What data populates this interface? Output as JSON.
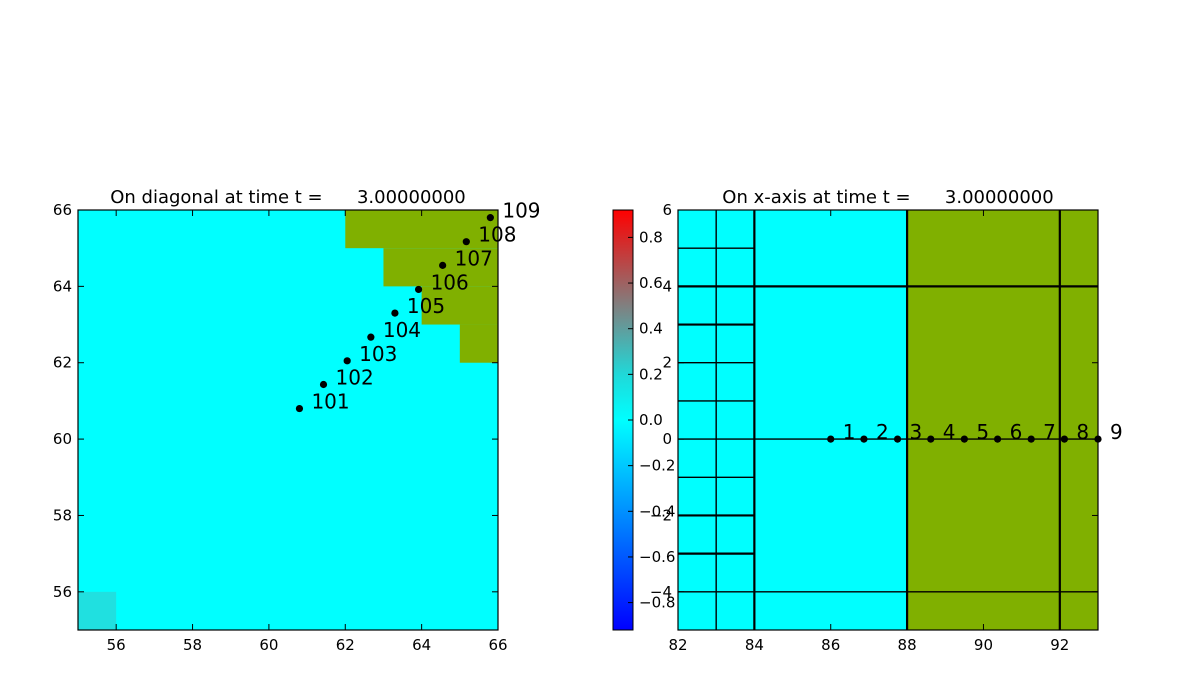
{
  "chart_data": [
    {
      "type": "heatmap",
      "title": "On diagonal at time t =      3.00000000",
      "xlim": [
        55,
        66
      ],
      "ylim": [
        55,
        66
      ],
      "xticks": [
        56,
        58,
        60,
        62,
        64,
        66
      ],
      "yticks": [
        56,
        58,
        60,
        62,
        64,
        66
      ],
      "background_color": "#00ffff",
      "cells": [
        {
          "x": [
            55,
            56
          ],
          "y": [
            55,
            56
          ],
          "color": "#20e0e0"
        },
        {
          "x": [
            62,
            66
          ],
          "y": [
            65,
            66
          ],
          "color": "#80b000"
        },
        {
          "x": [
            63,
            66
          ],
          "y": [
            64,
            65
          ],
          "color": "#80b000"
        },
        {
          "x": [
            64,
            66
          ],
          "y": [
            63,
            64
          ],
          "color": "#80b000"
        },
        {
          "x": [
            65,
            66
          ],
          "y": [
            62,
            63
          ],
          "color": "#80b000"
        }
      ],
      "points": [
        {
          "label": "101",
          "x": 60.8,
          "y": 60.8
        },
        {
          "label": "102",
          "x": 61.43,
          "y": 61.43
        },
        {
          "label": "103",
          "x": 62.05,
          "y": 62.05
        },
        {
          "label": "104",
          "x": 62.67,
          "y": 62.67
        },
        {
          "label": "105",
          "x": 63.3,
          "y": 63.3
        },
        {
          "label": "106",
          "x": 63.92,
          "y": 63.92
        },
        {
          "label": "107",
          "x": 64.55,
          "y": 64.55
        },
        {
          "label": "108",
          "x": 65.17,
          "y": 65.17
        },
        {
          "label": "109",
          "x": 65.8,
          "y": 65.8
        }
      ]
    },
    {
      "type": "heatmap",
      "title": "On x-axis at time t =      3.00000000",
      "xlim": [
        82,
        93
      ],
      "ylim": [
        -5,
        6
      ],
      "xticks": [
        82,
        84,
        86,
        88,
        90,
        92
      ],
      "yticks": [
        -4,
        -2,
        0,
        2,
        4,
        6
      ],
      "cells": [
        {
          "x": [
            82,
            88
          ],
          "y": [
            -5,
            6
          ],
          "color": "#00ffff"
        },
        {
          "x": [
            88,
            93
          ],
          "y": [
            -5,
            6
          ],
          "color": "#80b000"
        }
      ],
      "grid_lines": {
        "vertical": [
          {
            "x": 83,
            "y": [
              -5,
              6
            ],
            "bold": false
          },
          {
            "x": 84,
            "y": [
              -5,
              6
            ],
            "bold": true
          },
          {
            "x": 88,
            "y": [
              -5,
              6
            ],
            "bold": true
          },
          {
            "x": 92,
            "y": [
              -5,
              6
            ],
            "bold": true
          }
        ],
        "horizontal": [
          {
            "y": 5,
            "x": [
              82,
              84
            ],
            "bold": false
          },
          {
            "y": 4,
            "x": [
              82,
              93
            ],
            "bold": true
          },
          {
            "y": 3,
            "x": [
              82,
              84
            ],
            "bold": true
          },
          {
            "y": 2,
            "x": [
              82,
              84
            ],
            "bold": false
          },
          {
            "y": 1,
            "x": [
              82,
              84
            ],
            "bold": false
          },
          {
            "y": 0,
            "x": [
              82,
              93
            ],
            "bold": false
          },
          {
            "y": -1,
            "x": [
              82,
              84
            ],
            "bold": false
          },
          {
            "y": -2,
            "x": [
              82,
              84
            ],
            "bold": true
          },
          {
            "y": -3,
            "x": [
              82,
              84
            ],
            "bold": true
          },
          {
            "y": -4,
            "x": [
              82,
              93
            ],
            "bold": false
          }
        ]
      },
      "points": [
        {
          "label": "1",
          "x": 86.0,
          "y": 0
        },
        {
          "label": "2",
          "x": 86.87,
          "y": 0
        },
        {
          "label": "3",
          "x": 87.75,
          "y": 0
        },
        {
          "label": "4",
          "x": 88.62,
          "y": 0
        },
        {
          "label": "5",
          "x": 89.5,
          "y": 0
        },
        {
          "label": "6",
          "x": 90.37,
          "y": 0
        },
        {
          "label": "7",
          "x": 91.25,
          "y": 0
        },
        {
          "label": "8",
          "x": 92.12,
          "y": 0
        },
        {
          "label": "9",
          "x": 93.0,
          "y": 0
        }
      ]
    }
  ],
  "colorbar": {
    "range": [
      -0.92,
      0.92
    ],
    "ticks": [
      {
        "value": 0.8,
        "label": "0.8"
      },
      {
        "value": 0.6,
        "label": "0.6"
      },
      {
        "value": 0.4,
        "label": "0.4"
      },
      {
        "value": 0.2,
        "label": "0.2"
      },
      {
        "value": 0.0,
        "label": "0.0"
      },
      {
        "value": -0.2,
        "label": "−0.2"
      },
      {
        "value": -0.4,
        "label": "−0.4"
      },
      {
        "value": -0.6,
        "label": "−0.6"
      },
      {
        "value": -0.8,
        "label": "−0.8"
      }
    ],
    "colors": [
      {
        "value": -0.92,
        "color": "#0000ff"
      },
      {
        "value": -0.2,
        "color": "#00c8ff"
      },
      {
        "value": 0.0,
        "color": "#00ffff"
      },
      {
        "value": 0.2,
        "color": "#20d8d8"
      },
      {
        "value": 0.5,
        "color": "#808080"
      },
      {
        "value": 0.92,
        "color": "#ff0000"
      }
    ]
  }
}
